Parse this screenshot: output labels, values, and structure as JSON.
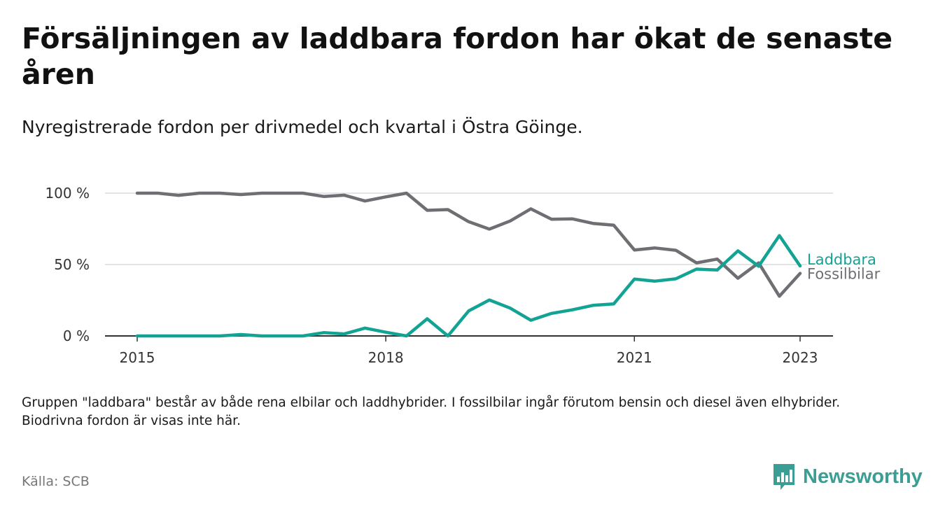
{
  "header": {
    "title": "Försäljningen av laddbara fordon har ökat de senaste åren",
    "subtitle": "Nyregistrerade fordon per drivmedel och kvartal i Östra Göinge."
  },
  "footer": {
    "note": "Gruppen \"laddbara\" består av både rena elbilar och laddhybrider. I fossilbilar ingår förutom bensin och diesel även elhybrider. Biodrivna fordon är visas inte här.",
    "source": "Källa: SCB",
    "brand": "Newsworthy",
    "brand_color": "#3b9e95",
    "brand_icon": "bar-chart-speech-bubble-icon"
  },
  "chart_data": {
    "type": "line",
    "title": "Försäljningen av laddbara fordon har ökat de senaste åren",
    "subtitle": "Nyregistrerade fordon per drivmedel och kvartal i Östra Göinge.",
    "xlabel": "",
    "ylabel": "",
    "x_axis": {
      "ticks": [
        2015,
        2018,
        2021,
        2023
      ],
      "tick_labels": [
        "2015",
        "2018",
        "2021",
        "2023"
      ],
      "range": [
        2015,
        2023.4
      ]
    },
    "y_axis": {
      "ticks": [
        0,
        50,
        100
      ],
      "tick_labels": [
        "0 %",
        "50 %",
        "100 %"
      ],
      "range": [
        0,
        100
      ],
      "grid": true
    },
    "legend": "inline-right",
    "x": [
      2015.0,
      2015.25,
      2015.5,
      2015.75,
      2016.0,
      2016.25,
      2016.5,
      2016.75,
      2017.0,
      2017.25,
      2017.5,
      2017.75,
      2018.0,
      2018.25,
      2018.5,
      2018.75,
      2019.0,
      2019.25,
      2019.5,
      2019.75,
      2020.0,
      2020.25,
      2020.5,
      2020.75,
      2021.0,
      2021.25,
      2021.5,
      2021.75,
      2022.0,
      2022.25,
      2022.5,
      2022.75,
      2023.0
    ],
    "series": [
      {
        "name": "Fossilbilar",
        "color": "#6e6e73",
        "values": [
          100,
          100,
          98.5,
          100,
          100,
          99,
          100,
          100,
          100,
          97.7,
          98.6,
          94.5,
          97.4,
          100,
          88,
          88.5,
          80,
          74.8,
          80.5,
          89,
          81.7,
          82,
          78.8,
          77.6,
          60.2,
          61.6,
          60,
          51.2,
          53.8,
          40.4,
          51.2,
          27.8,
          43.8
        ]
      },
      {
        "name": "Laddbara",
        "color": "#12a394",
        "values": [
          0,
          0,
          0,
          0,
          0,
          1,
          0,
          0,
          0,
          2.3,
          1.4,
          5.5,
          2.6,
          0,
          12,
          0,
          17.5,
          25.2,
          19.5,
          11,
          15.8,
          18.3,
          21.4,
          22.4,
          39.8,
          38.4,
          40,
          46.8,
          46.2,
          59.6,
          48.8,
          70.3,
          49
        ]
      }
    ]
  }
}
